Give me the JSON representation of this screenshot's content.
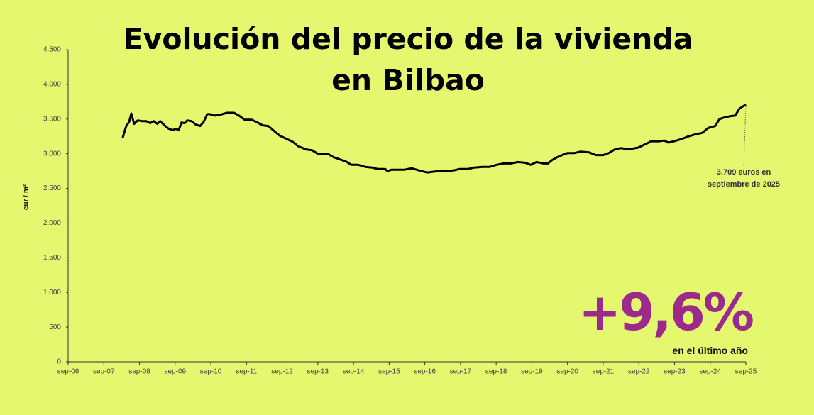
{
  "chart_data": {
    "type": "line",
    "title": "Evolución del precio de la vivienda en Bilbao",
    "ylabel": "eur / m²",
    "color": "#000000",
    "x": [
      2008.2,
      2008.3,
      2008.38,
      2008.44,
      2008.52,
      2008.62,
      2008.74,
      2008.86,
      2008.97,
      2009.07,
      2009.17,
      2009.25,
      2009.37,
      2009.49,
      2009.61,
      2009.69,
      2009.77,
      2009.85,
      2009.93,
      2010.01,
      2010.13,
      2010.25,
      2010.37,
      2010.47,
      2010.57,
      2010.65,
      2010.77,
      2010.92,
      2011.12,
      2011.32,
      2011.46,
      2011.62,
      2011.82,
      2011.98,
      2012.12,
      2012.28,
      2012.44,
      2012.6,
      2012.81,
      2012.97,
      2013.11,
      2013.35,
      2013.51,
      2013.67,
      2013.95,
      2014.11,
      2014.45,
      2014.61,
      2014.8,
      2015.0,
      2015.2,
      2015.34,
      2015.56,
      2015.62,
      2015.74,
      2015.9,
      2016.1,
      2016.3,
      2016.5,
      2016.65,
      2016.75,
      2016.89,
      2017.09,
      2017.25,
      2017.49,
      2017.65,
      2017.89,
      2018.05,
      2018.29,
      2018.49,
      2018.68,
      2018.88,
      2019.08,
      2019.28,
      2019.48,
      2019.64,
      2019.8,
      2020.0,
      2020.12,
      2020.24,
      2020.38,
      2020.52,
      2020.67,
      2020.87,
      2021.03,
      2021.27,
      2021.47,
      2021.67,
      2021.83,
      2021.99,
      2022.15,
      2022.31,
      2022.46,
      2022.66,
      2022.82,
      2023.02,
      2023.22,
      2023.38,
      2023.5,
      2023.66,
      2023.86,
      2024.06,
      2024.26,
      2024.45,
      2024.61,
      2024.81,
      2024.93,
      2025.05,
      2025.21,
      2025.37,
      2025.49,
      2025.67
    ],
    "values": [
      3230,
      3400,
      3460,
      3580,
      3430,
      3480,
      3470,
      3470,
      3440,
      3470,
      3430,
      3470,
      3410,
      3360,
      3340,
      3360,
      3340,
      3450,
      3440,
      3480,
      3470,
      3420,
      3400,
      3460,
      3570,
      3570,
      3550,
      3560,
      3590,
      3590,
      3550,
      3490,
      3490,
      3450,
      3410,
      3400,
      3330,
      3260,
      3210,
      3170,
      3110,
      3060,
      3050,
      3000,
      3000,
      2950,
      2890,
      2840,
      2840,
      2810,
      2800,
      2780,
      2780,
      2750,
      2770,
      2770,
      2770,
      2790,
      2760,
      2740,
      2730,
      2740,
      2750,
      2750,
      2760,
      2780,
      2780,
      2800,
      2810,
      2810,
      2840,
      2860,
      2860,
      2880,
      2870,
      2840,
      2880,
      2860,
      2860,
      2910,
      2950,
      2980,
      3010,
      3010,
      3030,
      3020,
      2980,
      2980,
      3010,
      3060,
      3080,
      3070,
      3070,
      3090,
      3130,
      3180,
      3180,
      3190,
      3160,
      3180,
      3210,
      3250,
      3280,
      3300,
      3370,
      3400,
      3500,
      3520,
      3540,
      3550,
      3650,
      3709
    ],
    "xlim": [
      2006.67,
      2025.67
    ],
    "xticks": [
      {
        "value": 2006.67,
        "label": "sep-06"
      },
      {
        "value": 2007.67,
        "label": "sep-07"
      },
      {
        "value": 2008.67,
        "label": "sep-08"
      },
      {
        "value": 2009.67,
        "label": "sep-09"
      },
      {
        "value": 2010.67,
        "label": "sep-10"
      },
      {
        "value": 2011.67,
        "label": "sep-11"
      },
      {
        "value": 2012.67,
        "label": "sep-12"
      },
      {
        "value": 2013.67,
        "label": "sep-13"
      },
      {
        "value": 2014.67,
        "label": "sep-14"
      },
      {
        "value": 2015.67,
        "label": "sep-15"
      },
      {
        "value": 2016.67,
        "label": "sep-16"
      },
      {
        "value": 2017.67,
        "label": "sep-17"
      },
      {
        "value": 2018.67,
        "label": "sep-18"
      },
      {
        "value": 2019.67,
        "label": "sep-19"
      },
      {
        "value": 2020.67,
        "label": "sep-20"
      },
      {
        "value": 2021.67,
        "label": "sep-21"
      },
      {
        "value": 2022.67,
        "label": "sep-22"
      },
      {
        "value": 2023.67,
        "label": "sep-23"
      },
      {
        "value": 2024.67,
        "label": "sep-24"
      },
      {
        "value": 2025.67,
        "label": "sep-25"
      }
    ],
    "ylim": [
      0,
      4500
    ],
    "yticks": [
      0,
      {
        "value": 500,
        "label": "500"
      },
      {
        "value": 1000,
        "label": "1.000"
      },
      {
        "value": 1500,
        "label": "1.500"
      },
      {
        "value": 2000,
        "label": "2.000"
      },
      {
        "value": 2500,
        "label": "2.500"
      },
      {
        "value": 3000,
        "label": "3.000"
      },
      {
        "value": 3500,
        "label": "3.500"
      },
      {
        "value": 4000,
        "label": "4.000"
      },
      {
        "value": 4500,
        "label": "4.500"
      }
    ],
    "annotation": [
      "3.709 euros en",
      "septiembre de 2025"
    ],
    "highlight": {
      "text": "+9,6%",
      "caption": "en el último año",
      "color": "#9b2a8c"
    }
  }
}
